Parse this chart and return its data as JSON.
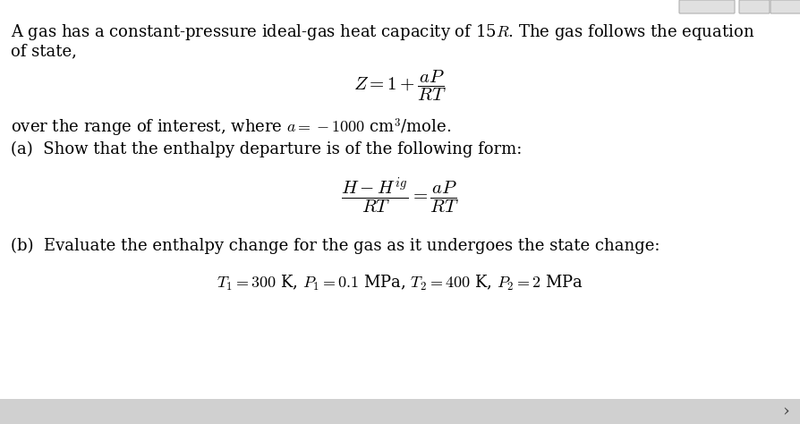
{
  "bg_color": "#ffffff",
  "bottom_bar_color": "#d0d0d0",
  "btn_color": "#e0e0e0",
  "btn_edge_color": "#b0b0b0",
  "line1": "A gas has a constant-pressure ideal-gas heat capacity of 15$R$. The gas follows the equation",
  "line2": "of state,",
  "equation1": "$Z = 1 + \\dfrac{aP}{RT}$",
  "line3": "over the range of interest, where $a = -1000$ cm$^3$/mole.",
  "line4": "(a)  Show that the enthalpy departure is of the following form:",
  "equation2": "$\\dfrac{H - H^{ig}}{RT} = \\dfrac{aP}{RT}$",
  "line5": "(b)  Evaluate the enthalpy change for the gas as it undergoes the state change:",
  "equation3": "$T_1 = 300$ K, $P_1 = 0.1$ MPa, $T_2 = 400$ K, $P_2 = 2$ MPa",
  "text_color": "#000000",
  "font_size_body": 13.0,
  "font_size_eq": 15.0,
  "arrow_char": "›"
}
